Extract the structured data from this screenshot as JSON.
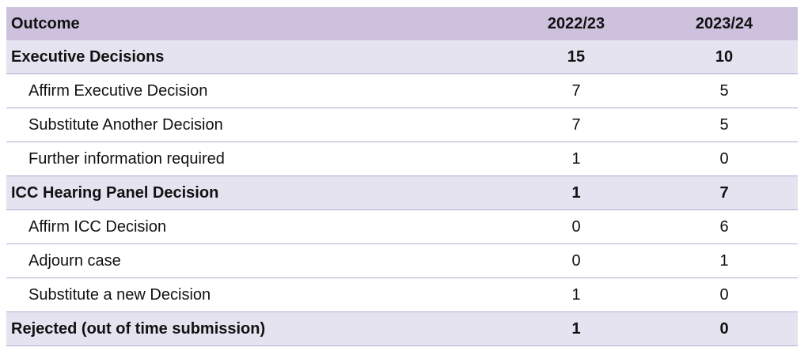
{
  "table": {
    "headers": {
      "outcome": "Outcome",
      "year1": "2022/23",
      "year2": "2023/24"
    },
    "rows": [
      {
        "label": "Executive Decisions",
        "y1": "15",
        "y2": "10",
        "kind": "group"
      },
      {
        "label": "Affirm Executive Decision",
        "y1": "7",
        "y2": "5",
        "kind": "sub"
      },
      {
        "label": "Substitute Another Decision",
        "y1": "7",
        "y2": "5",
        "kind": "sub"
      },
      {
        "label": "Further information required",
        "y1": "1",
        "y2": "0",
        "kind": "sub"
      },
      {
        "label": "ICC Hearing Panel Decision",
        "y1": "1",
        "y2": "7",
        "kind": "group"
      },
      {
        "label": "Affirm ICC Decision",
        "y1": "0",
        "y2": "6",
        "kind": "sub"
      },
      {
        "label": "Adjourn case",
        "y1": "0",
        "y2": "1",
        "kind": "sub"
      },
      {
        "label": "Substitute a new Decision",
        "y1": "1",
        "y2": "0",
        "kind": "sub"
      },
      {
        "label": "Rejected (out of time submission)",
        "y1": "1",
        "y2": "0",
        "kind": "group"
      }
    ]
  },
  "colors": {
    "header_bg": "#cdc1dd",
    "group_bg": "#e6e3f0",
    "row_border": "#b3a9cc"
  }
}
